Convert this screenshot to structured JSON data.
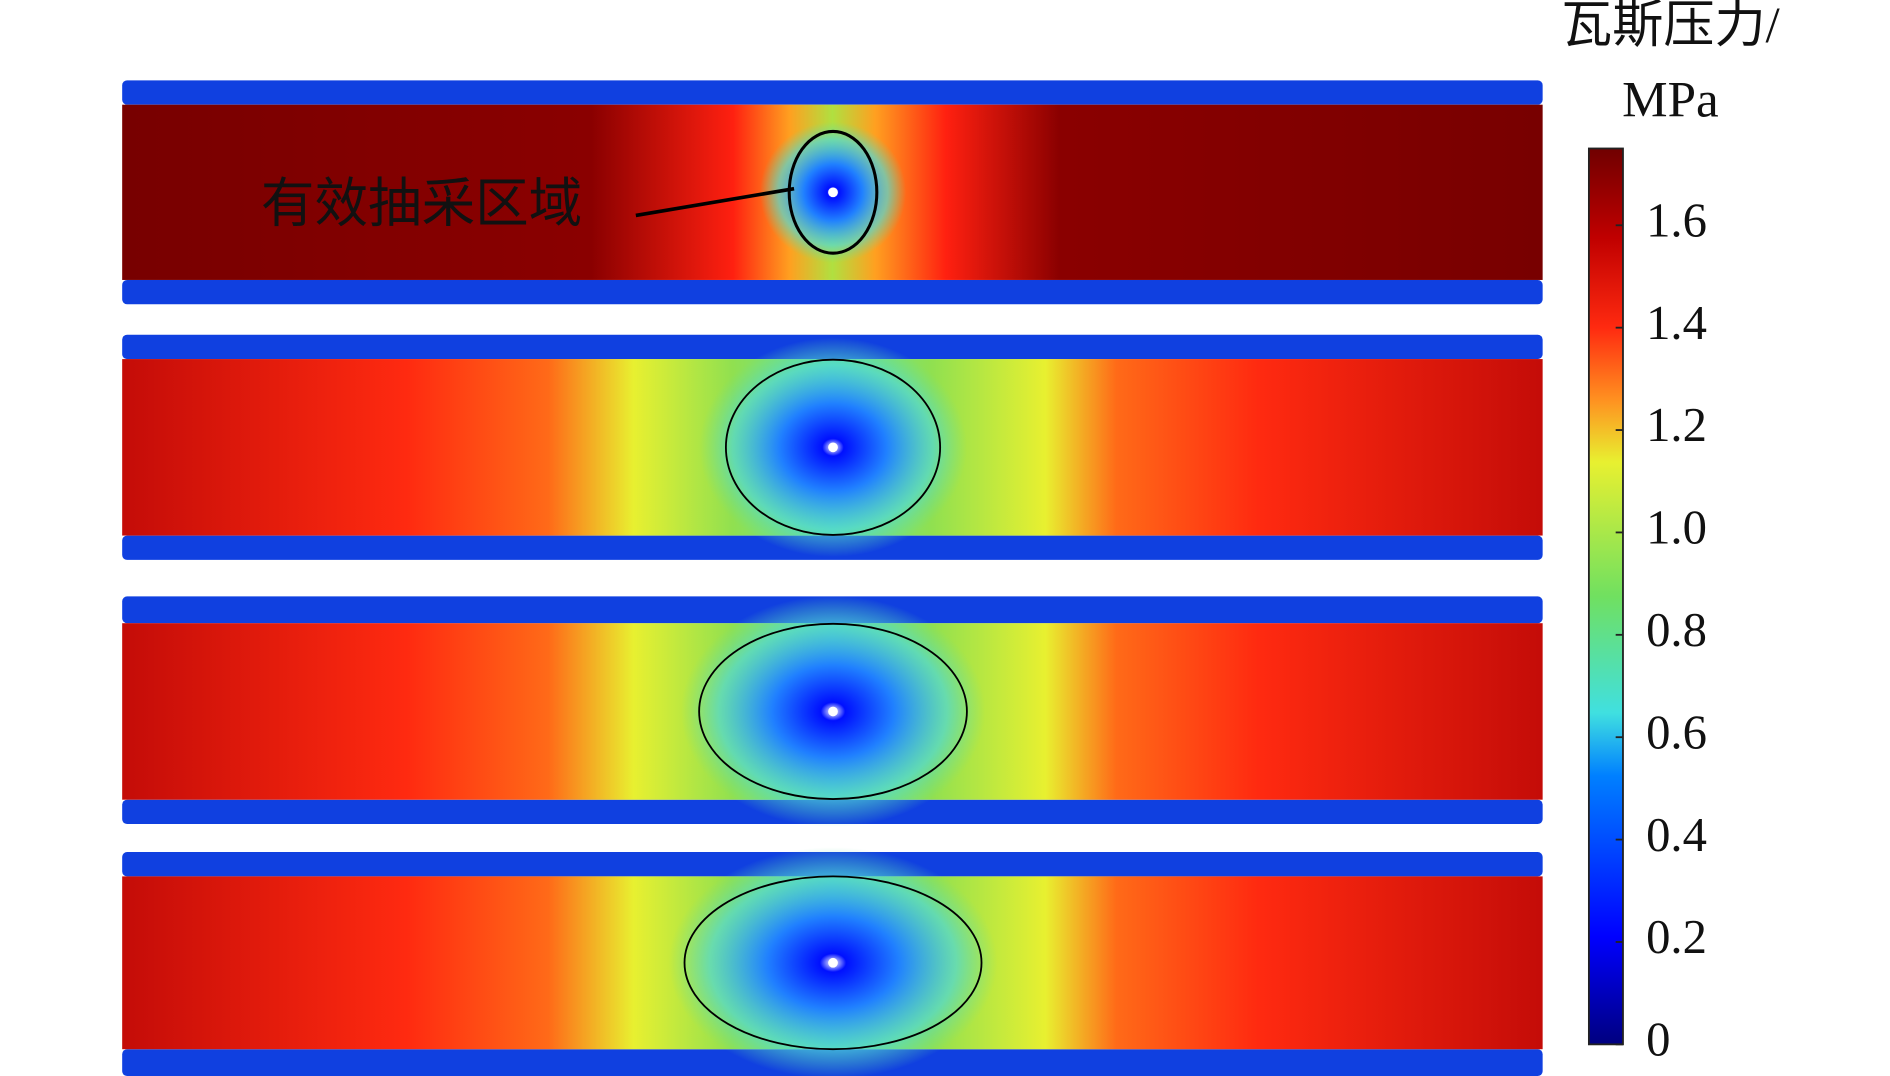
{
  "chart_data": {
    "type": "contour",
    "colorbar_label": [
      "瓦斯压力/",
      "MPa"
    ],
    "annotation": "有效抽采区域",
    "clim": [
      0,
      1.75
    ],
    "cticks": [
      0,
      0.2,
      0.4,
      0.6,
      0.8,
      {
        "value": 1,
        "label": "1.0"
      },
      1.2,
      1.4,
      1.6
    ]
  }
}
